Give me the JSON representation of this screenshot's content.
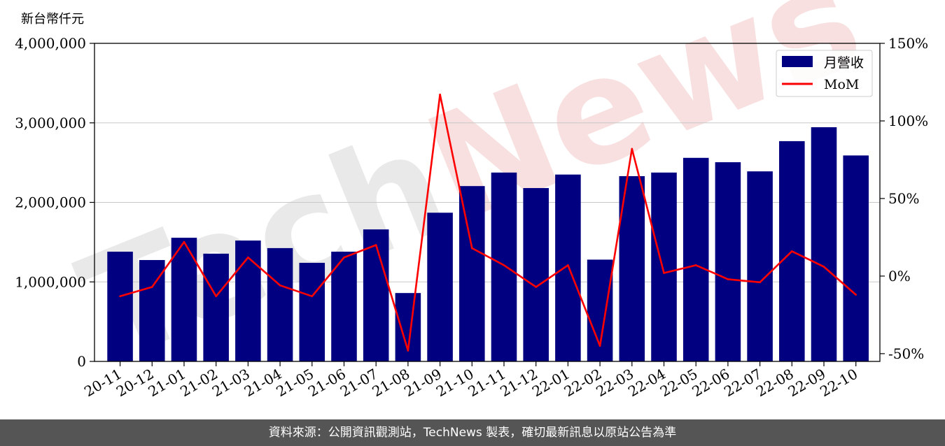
{
  "chart_data": {
    "type": "bar",
    "title": "",
    "ylabel_left": "新台幣仟元",
    "ylim_left": [
      0,
      4000000
    ],
    "yticks_left": [
      "0",
      "1,000,000",
      "2,000,000",
      "3,000,000",
      "4,000,000"
    ],
    "ylim_right": [
      -55,
      150
    ],
    "yticks_right": [
      "-50%",
      "0%",
      "50%",
      "100%",
      "150%"
    ],
    "grid": "horizontal",
    "legend_position": "top-right",
    "categories": [
      "20-11",
      "20-12",
      "21-01",
      "21-02",
      "21-03",
      "21-04",
      "21-05",
      "21-06",
      "21-07",
      "21-08",
      "21-09",
      "21-10",
      "21-11",
      "21-12",
      "22-01",
      "22-02",
      "22-03",
      "22-04",
      "22-05",
      "22-06",
      "22-07",
      "22-08",
      "22-09",
      "22-10"
    ],
    "series": [
      {
        "name": "月營收",
        "type": "bar",
        "color": "#000080",
        "axis": "left",
        "values": [
          1380000,
          1275000,
          1555000,
          1355000,
          1520000,
          1425000,
          1240000,
          1380000,
          1660000,
          860000,
          1870000,
          2205000,
          2375000,
          2180000,
          2350000,
          1280000,
          2330000,
          2375000,
          2560000,
          2505000,
          2390000,
          2770000,
          2945000,
          2590000
        ]
      },
      {
        "name": "MoM",
        "type": "line",
        "color": "#ff0000",
        "axis": "right",
        "values": [
          -13,
          -7,
          22,
          -13,
          12,
          -6,
          -13,
          12,
          20,
          -48,
          117,
          18,
          7,
          -7,
          7,
          -45,
          82,
          2,
          7,
          -2,
          -4,
          16,
          6,
          -12
        ]
      }
    ]
  },
  "footer": {
    "text": "資料來源：公開資訊觀測站，TechNews 製表，確切最新訊息以原站公告為準"
  }
}
